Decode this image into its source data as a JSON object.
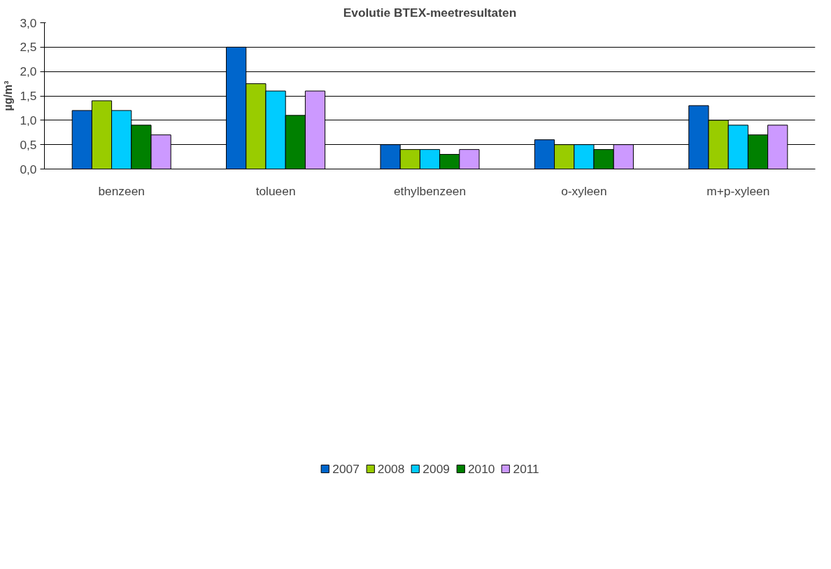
{
  "chart_data": {
    "type": "bar",
    "title": "Evolutie BTEX-meetresultaten",
    "ylabel": "µg/m³",
    "categories": [
      "benzeen",
      "tolueen",
      "ethylbenzeen",
      "o-xyleen",
      "m+p-xyleen"
    ],
    "series": [
      {
        "name": "2007",
        "color": "#0066cc",
        "values": [
          1.2,
          2.5,
          0.5,
          0.6,
          1.3
        ]
      },
      {
        "name": "2008",
        "color": "#99cc00",
        "values": [
          1.4,
          1.75,
          0.4,
          0.5,
          1.0
        ]
      },
      {
        "name": "2009",
        "color": "#00ccff",
        "values": [
          1.2,
          1.6,
          0.4,
          0.5,
          0.9
        ]
      },
      {
        "name": "2010",
        "color": "#008000",
        "values": [
          0.9,
          1.1,
          0.3,
          0.4,
          0.7
        ]
      },
      {
        "name": "2011",
        "color": "#cc99ff",
        "values": [
          0.7,
          1.6,
          0.4,
          0.5,
          0.9
        ]
      }
    ],
    "ylim": [
      0,
      3
    ],
    "yticks": [
      {
        "value": 0,
        "label": "0,0"
      },
      {
        "value": 0.5,
        "label": "0,5"
      },
      {
        "value": 1,
        "label": "1,0"
      },
      {
        "value": 1.5,
        "label": "1,5"
      },
      {
        "value": 2,
        "label": "2,0"
      },
      {
        "value": 2.5,
        "label": "2,5"
      },
      {
        "value": 3,
        "label": "3,0"
      }
    ],
    "grid": "y",
    "legend": "bottom"
  }
}
